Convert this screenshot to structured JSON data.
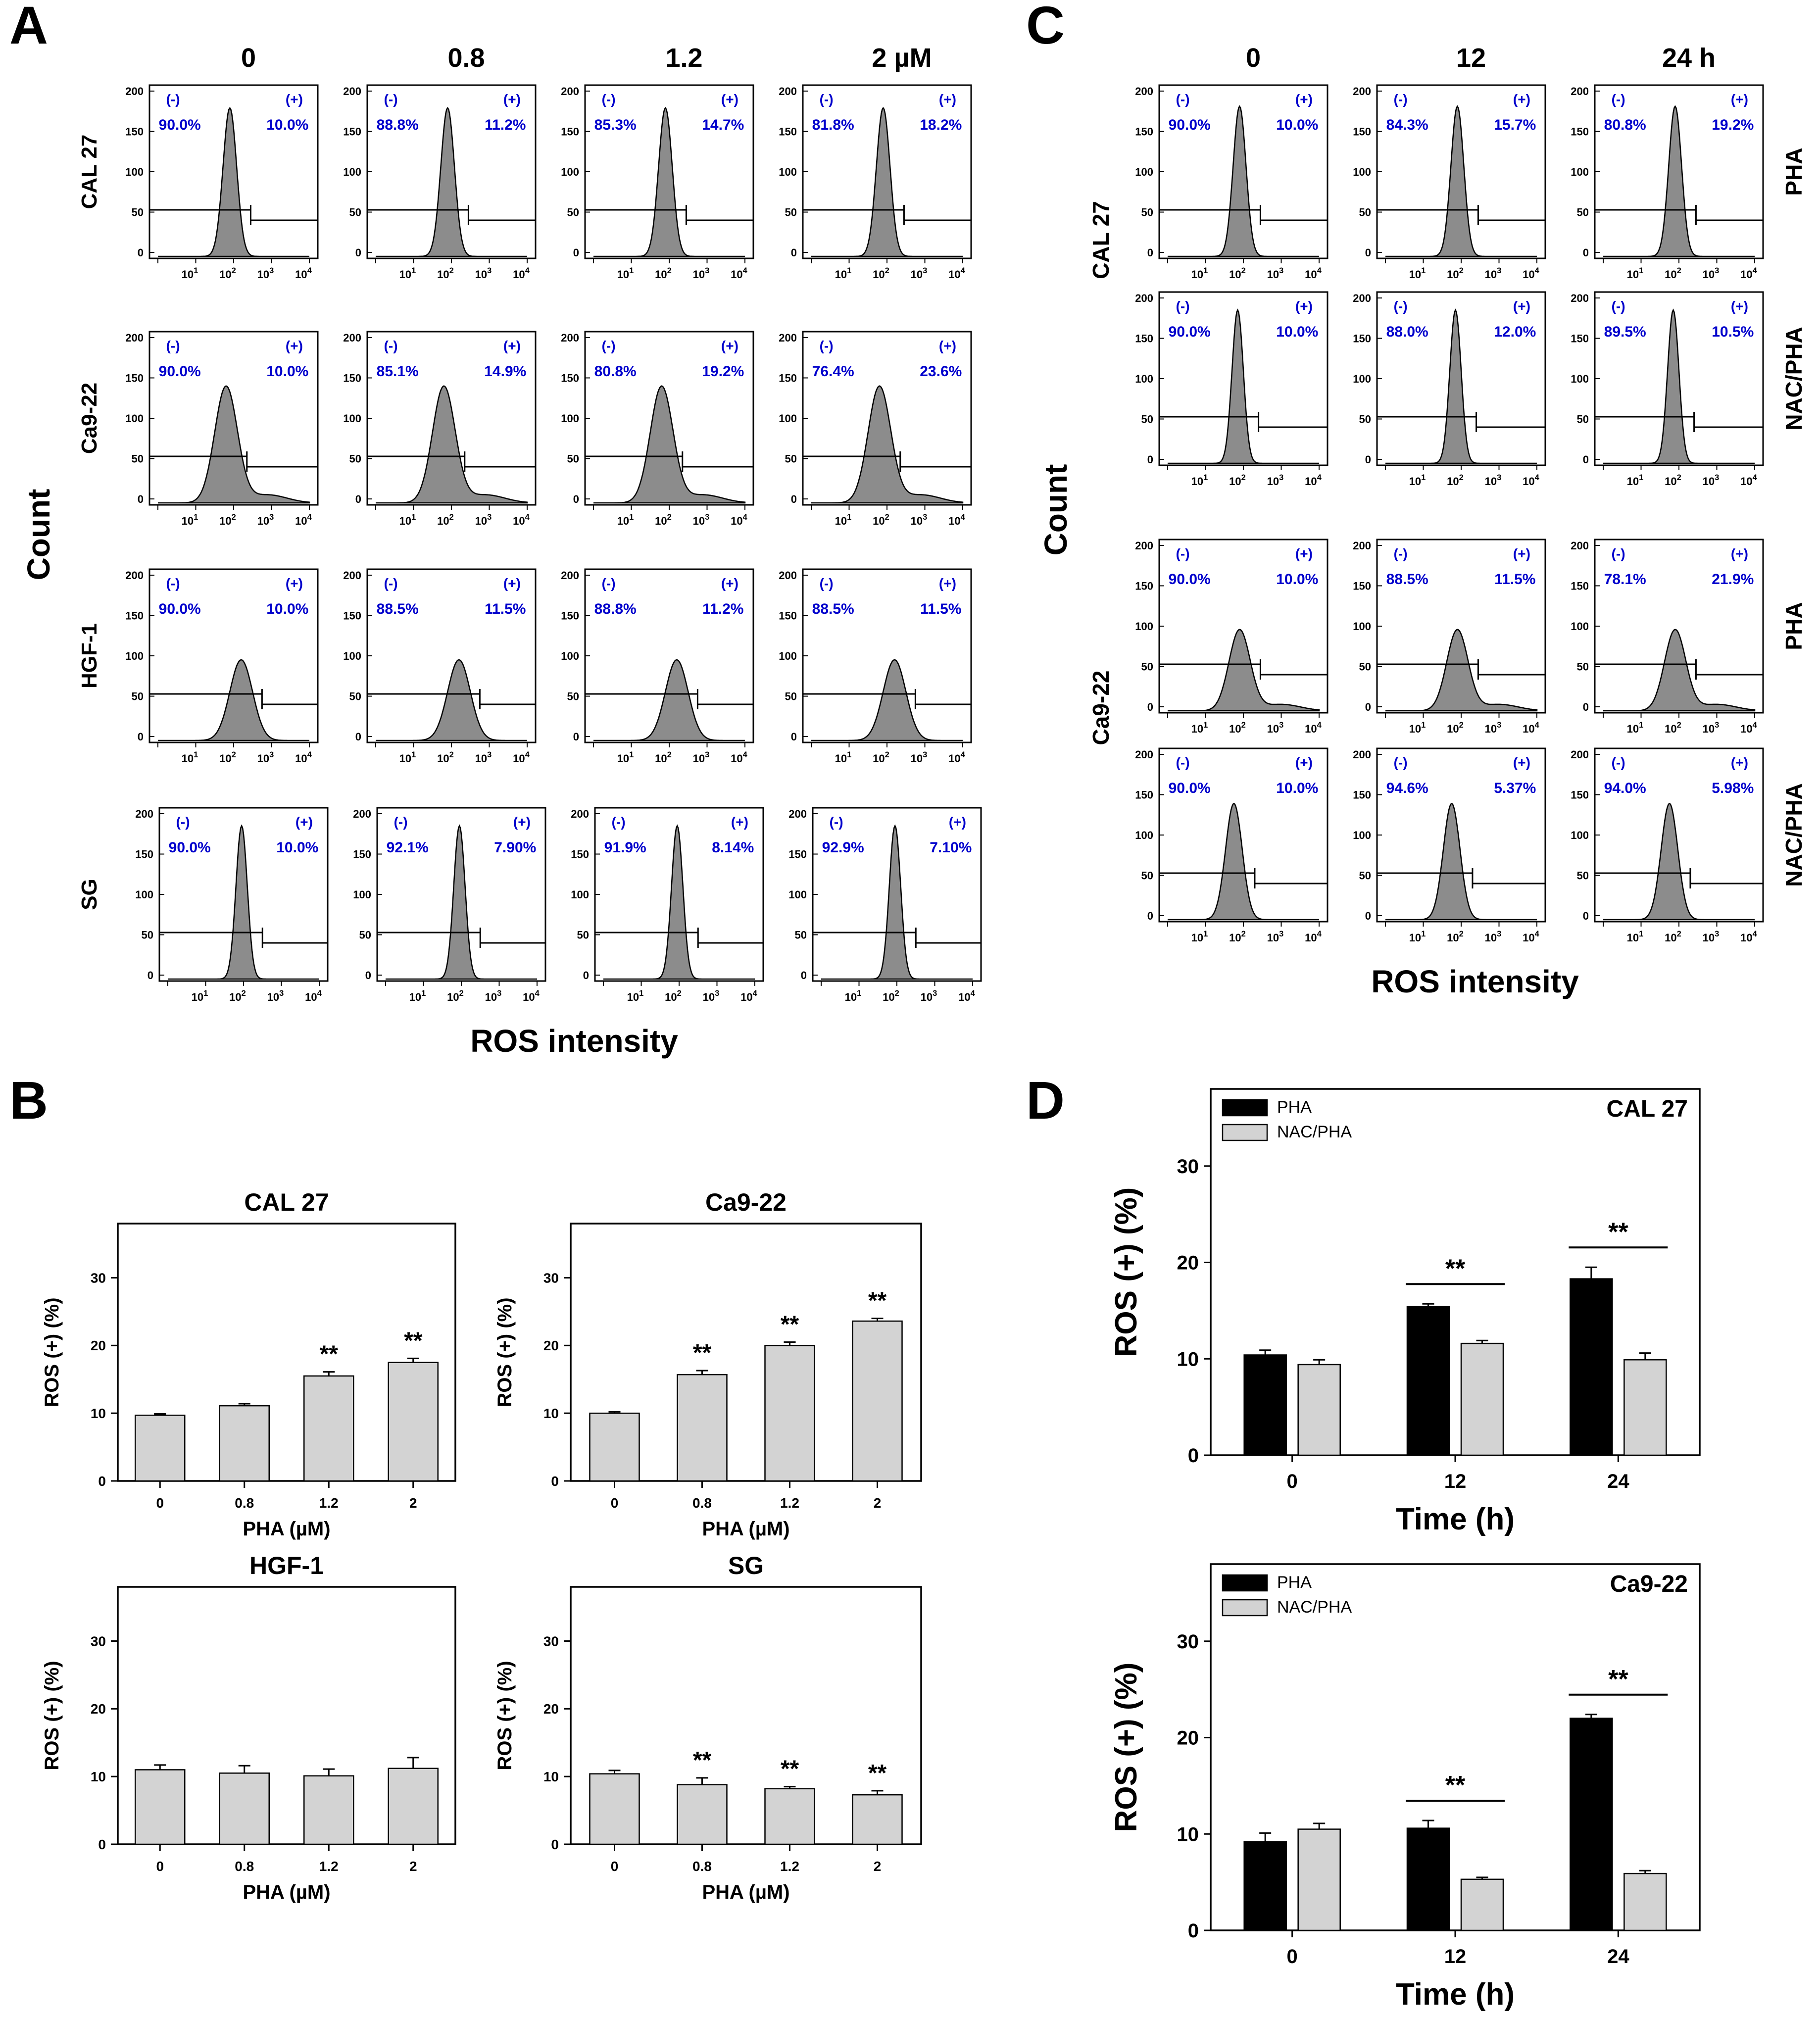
{
  "panel_labels": [
    "A",
    "B",
    "C",
    "D"
  ],
  "panelA": {
    "column_headers": [
      "0",
      "0.8",
      "1.2",
      "2 µM"
    ],
    "row_labels": [
      "CAL 27",
      "Ca9-22",
      "HGF-1",
      "SG"
    ],
    "y_axis_label": "Count",
    "x_axis_label": "ROS intensity",
    "gate_labels": [
      "(-)",
      "(+)"
    ],
    "y_ticks": [
      "200",
      "150",
      "100",
      "50",
      "0"
    ],
    "x_ticks": [
      "10",
      "10",
      "10",
      "10"
    ],
    "x_tick_exponents": [
      "1",
      "2",
      "3",
      "4"
    ],
    "percentages": [
      [
        [
          "90.0%",
          "10.0%"
        ],
        [
          "88.8%",
          "11.2%"
        ],
        [
          "85.3%",
          "14.7%"
        ],
        [
          "81.8%",
          "18.2%"
        ]
      ],
      [
        [
          "90.0%",
          "10.0%"
        ],
        [
          "85.1%",
          "14.9%"
        ],
        [
          "80.8%",
          "19.2%"
        ],
        [
          "76.4%",
          "23.6%"
        ]
      ],
      [
        [
          "90.0%",
          "10.0%"
        ],
        [
          "88.5%",
          "11.5%"
        ],
        [
          "88.8%",
          "11.2%"
        ],
        [
          "88.5%",
          "11.5%"
        ]
      ],
      [
        [
          "90.0%",
          "10.0%"
        ],
        [
          "92.1%",
          "7.90%"
        ],
        [
          "91.9%",
          "8.14%"
        ],
        [
          "92.9%",
          "7.10%"
        ]
      ]
    ]
  },
  "panelC": {
    "column_headers": [
      "0",
      "12",
      "24 h"
    ],
    "row_labels": [
      "CAL 27",
      "Ca9-22"
    ],
    "treatment_labels": [
      "PHA",
      "NAC/PHA",
      "PHA",
      "NAC/PHA"
    ],
    "y_axis_label": "Count",
    "x_axis_label": "ROS intensity",
    "percentages": [
      [
        [
          "90.0%",
          "10.0%"
        ],
        [
          "84.3%",
          "15.7%"
        ],
        [
          "80.8%",
          "19.2%"
        ]
      ],
      [
        [
          "90.0%",
          "10.0%"
        ],
        [
          "88.0%",
          "12.0%"
        ],
        [
          "89.5%",
          "10.5%"
        ]
      ],
      [
        [
          "90.0%",
          "10.0%"
        ],
        [
          "88.5%",
          "11.5%"
        ],
        [
          "78.1%",
          "21.9%"
        ]
      ],
      [
        [
          "90.0%",
          "10.0%"
        ],
        [
          "94.6%",
          "5.37%"
        ],
        [
          "94.0%",
          "5.98%"
        ]
      ]
    ]
  },
  "chart_data": [
    {
      "type": "bar",
      "panel": "B",
      "title": "CAL 27",
      "categories": [
        "0",
        "0.8",
        "1.2",
        "2"
      ],
      "values": [
        9.7,
        11.1,
        15.5,
        17.5
      ],
      "errors": [
        0.2,
        0.3,
        0.6,
        0.6
      ],
      "significance": [
        "",
        "",
        "**",
        "**"
      ],
      "xlabel": "PHA (µM)",
      "ylabel": "ROS (+) (%)",
      "ylim": [
        0,
        38
      ],
      "yticks": [
        "0",
        "10",
        "20",
        "30"
      ],
      "color": "#d3d3d3"
    },
    {
      "type": "bar",
      "panel": "B",
      "title": "Ca9-22",
      "categories": [
        "0",
        "0.8",
        "1.2",
        "2"
      ],
      "values": [
        10.0,
        15.7,
        20.0,
        23.6
      ],
      "errors": [
        0.2,
        0.6,
        0.5,
        0.4
      ],
      "significance": [
        "",
        "**",
        "**",
        "**"
      ],
      "xlabel": "PHA (µM)",
      "ylabel": "ROS (+) (%)",
      "ylim": [
        0,
        38
      ],
      "yticks": [
        "0",
        "10",
        "20",
        "30"
      ],
      "color": "#d3d3d3"
    },
    {
      "type": "bar",
      "panel": "B",
      "title": "HGF-1",
      "categories": [
        "0",
        "0.8",
        "1.2",
        "2"
      ],
      "values": [
        11.0,
        10.5,
        10.1,
        11.2
      ],
      "errors": [
        0.7,
        1.1,
        1.0,
        1.6
      ],
      "significance": [
        "",
        "",
        "",
        ""
      ],
      "xlabel": "PHA (µM)",
      "ylabel": "ROS (+) (%)",
      "ylim": [
        0,
        38
      ],
      "yticks": [
        "0",
        "10",
        "20",
        "30"
      ],
      "color": "#d3d3d3"
    },
    {
      "type": "bar",
      "panel": "B",
      "title": "SG",
      "categories": [
        "0",
        "0.8",
        "1.2",
        "2"
      ],
      "values": [
        10.4,
        8.8,
        8.2,
        7.3
      ],
      "errors": [
        0.5,
        1.0,
        0.3,
        0.6
      ],
      "significance": [
        "",
        "**",
        "**",
        "**"
      ],
      "xlabel": "PHA (µM)",
      "ylabel": "ROS (+) (%)",
      "ylim": [
        0,
        38
      ],
      "yticks": [
        "0",
        "10",
        "20",
        "30"
      ],
      "color": "#d3d3d3"
    },
    {
      "type": "bar",
      "panel": "D",
      "title": "CAL 27",
      "categories": [
        "0",
        "12",
        "24"
      ],
      "series": [
        {
          "name": "PHA",
          "values": [
            10.4,
            15.4,
            18.3
          ],
          "errors": [
            0.5,
            0.3,
            1.2
          ],
          "color": "#000000"
        },
        {
          "name": "NAC/PHA",
          "values": [
            9.4,
            11.6,
            9.9
          ],
          "errors": [
            0.5,
            0.3,
            0.7
          ],
          "color": "#d3d3d3"
        }
      ],
      "significance": [
        "",
        "**",
        "**"
      ],
      "xlabel": "Time (h)",
      "ylabel": "ROS (+) (%)",
      "ylim": [
        0,
        38
      ],
      "yticks": [
        "0",
        "10",
        "20",
        "30"
      ],
      "legend": "top-left"
    },
    {
      "type": "bar",
      "panel": "D",
      "title": "Ca9-22",
      "categories": [
        "0",
        "12",
        "24"
      ],
      "series": [
        {
          "name": "PHA",
          "values": [
            9.2,
            10.6,
            22.0
          ],
          "errors": [
            0.9,
            0.8,
            0.4
          ],
          "color": "#000000"
        },
        {
          "name": "NAC/PHA",
          "values": [
            10.5,
            5.3,
            5.9
          ],
          "errors": [
            0.6,
            0.2,
            0.3
          ],
          "color": "#d3d3d3"
        }
      ],
      "significance": [
        "",
        "**",
        "**"
      ],
      "xlabel": "Time (h)",
      "ylabel": "ROS (+) (%)",
      "ylim": [
        0,
        38
      ],
      "yticks": [
        "0",
        "10",
        "20",
        "30"
      ],
      "legend": "top-left"
    }
  ]
}
